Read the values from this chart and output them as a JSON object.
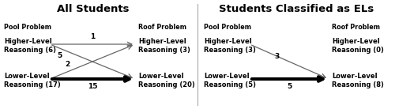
{
  "title_left": "All Students",
  "title_right": "Students Classified as ELs",
  "left": {
    "pool_label": "Pool Problem",
    "roof_label": "Roof Problem",
    "higher_pool": "Higher-Level\nReasoning (6)",
    "lower_pool": "Lower-Level\nReasoning (17)",
    "higher_roof": "Higher-Level\nReasoning (3)",
    "lower_roof": "Lower-Level\nReasoning (20)",
    "arrow_hh": {
      "label": "1"
    },
    "arrow_hl": {
      "label": "5"
    },
    "arrow_lh": {
      "label": "2"
    },
    "arrow_ll": {
      "label": "15"
    }
  },
  "right": {
    "pool_label": "Pool Problem",
    "roof_label": "Roof Problem",
    "higher_pool": "Higher-Level\nReasoning (3)",
    "lower_pool": "Lower-Level\nReasoning (5)",
    "higher_roof": "Higher-Level\nReasoning (0)",
    "lower_roof": "Lower-Level\nReasoning (8)",
    "arrow_hl": {
      "label": "3"
    },
    "arrow_ll": {
      "label": "5"
    }
  },
  "bg_color": "#ffffff",
  "text_color": "#000000",
  "thin_lw": 0.9,
  "thick_lw": 3.0,
  "thin_color": "#666666",
  "thick_color": "#000000",
  "label_fontsize": 6.0,
  "header_fontsize": 5.8,
  "title_fontsize": 9.5,
  "arrow_label_fontsize": 6.5
}
